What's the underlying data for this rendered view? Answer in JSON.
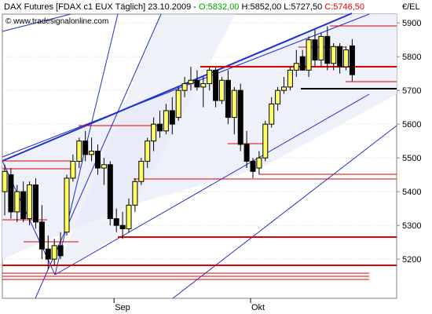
{
  "chart_data": {
    "type": "candlestick",
    "title": "DAX Futures [FDAX c1 EUX  Täglich] 23.10.2009 - ",
    "title_open": "O:5832,00",
    "title_high_low": " H:5852,00 L:5727,50 ",
    "title_close": "C:5746,50",
    "copyright": "© www.tradesignalonline.com",
    "y_axis_label": "€/EL",
    "categories": [
      null,
      null,
      null,
      null,
      null,
      null,
      null,
      null,
      null,
      null,
      null,
      null,
      null,
      null,
      null,
      null,
      null,
      null,
      "Sep",
      null,
      null,
      null,
      null,
      null,
      null,
      null,
      null,
      null,
      null,
      null,
      null,
      null,
      null,
      null,
      null,
      null,
      null,
      null,
      null,
      null,
      "Okt",
      null,
      null,
      null,
      null,
      null,
      null,
      null,
      null,
      null,
      null,
      null,
      null,
      null,
      null,
      null,
      null
    ],
    "open": [
      5400,
      5450,
      5340,
      5400,
      5320,
      5420,
      5310,
      5230,
      5200,
      5240,
      5280,
      5440,
      5490,
      5550,
      5510,
      5520,
      5470,
      5480,
      5320,
      5300,
      5290,
      5360,
      5430,
      5490,
      5550,
      5600,
      5580,
      5640,
      5620,
      5700,
      5720,
      5730,
      5710,
      5720,
      5760,
      5670,
      5730,
      5620,
      5700,
      5540,
      5490,
      5470,
      5500,
      5600,
      5660,
      5700,
      5710,
      5760,
      5800,
      5760,
      5850,
      5790,
      5860,
      5780,
      5830,
      5770,
      5832
    ],
    "high": [
      5480,
      5470,
      5420,
      5430,
      5430,
      5440,
      5360,
      5270,
      5260,
      5280,
      5450,
      5510,
      5560,
      5580,
      5560,
      5540,
      5500,
      5490,
      5350,
      5340,
      5380,
      5440,
      5500,
      5560,
      5620,
      5640,
      5660,
      5680,
      5710,
      5740,
      5770,
      5760,
      5740,
      5770,
      5770,
      5740,
      5760,
      5710,
      5720,
      5580,
      5500,
      5520,
      5610,
      5680,
      5710,
      5740,
      5770,
      5820,
      5820,
      5860,
      5880,
      5870,
      5890,
      5840,
      5840,
      5830,
      5852
    ],
    "low": [
      5330,
      5320,
      5310,
      5310,
      5300,
      5290,
      5200,
      5170,
      5180,
      5200,
      5270,
      5430,
      5470,
      5490,
      5490,
      5450,
      5420,
      5300,
      5280,
      5260,
      5280,
      5340,
      5420,
      5470,
      5520,
      5560,
      5570,
      5570,
      5610,
      5680,
      5700,
      5700,
      5650,
      5700,
      5650,
      5660,
      5600,
      5570,
      5520,
      5470,
      5440,
      5450,
      5490,
      5590,
      5640,
      5690,
      5700,
      5740,
      5760,
      5740,
      5770,
      5770,
      5760,
      5760,
      5750,
      5760,
      5727.5
    ],
    "close": [
      5460,
      5340,
      5400,
      5320,
      5420,
      5310,
      5230,
      5200,
      5240,
      5210,
      5440,
      5490,
      5550,
      5510,
      5520,
      5470,
      5480,
      5320,
      5300,
      5290,
      5360,
      5430,
      5490,
      5550,
      5600,
      5580,
      5640,
      5600,
      5700,
      5720,
      5730,
      5710,
      5720,
      5760,
      5670,
      5730,
      5620,
      5700,
      5540,
      5490,
      5460,
      5500,
      5600,
      5660,
      5700,
      5710,
      5760,
      5780,
      5760,
      5850,
      5790,
      5860,
      5780,
      5830,
      5770,
      5820,
      5746.5
    ],
    "up_color": "#ffff66",
    "down_color": "#000000",
    "ylim": [
      5084,
      5926
    ],
    "yticks": [
      5200,
      5300,
      5400,
      5500,
      5600,
      5700,
      5800,
      5900
    ],
    "grid": true
  }
}
